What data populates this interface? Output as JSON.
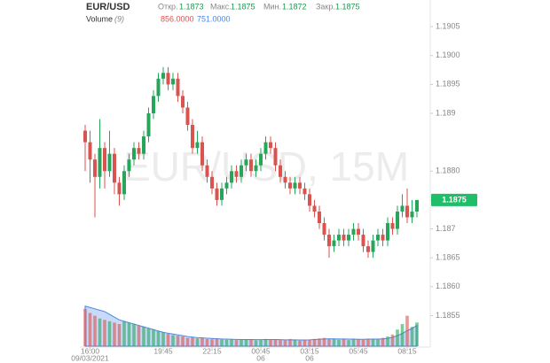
{
  "chart_data": {
    "type": "candlestick",
    "title": "EUR/USD",
    "watermark": "EUR/USD, 15M",
    "header_labels": {
      "open": "Откр.",
      "high": "Макс.",
      "low": "Мин.",
      "close": "Закр."
    },
    "categories": [
      null,
      "16:00",
      null,
      null,
      null,
      null,
      null,
      null,
      null,
      null,
      null,
      null,
      null,
      null,
      null,
      null,
      "19:45",
      null,
      null,
      null,
      null,
      null,
      null,
      null,
      null,
      null,
      "22:15",
      null,
      null,
      null,
      null,
      null,
      null,
      null,
      null,
      null,
      "00:45",
      null,
      null,
      null,
      null,
      null,
      null,
      null,
      null,
      null,
      "03:15",
      null,
      null,
      null,
      null,
      null,
      null,
      null,
      null,
      null,
      "05:45",
      null,
      null,
      null,
      null,
      null,
      null,
      null,
      null,
      null,
      "08:15",
      null,
      null
    ],
    "category_dates": [
      null,
      "09/03/2021",
      null,
      null,
      null,
      null,
      null,
      null,
      null,
      null,
      null,
      null,
      null,
      null,
      null,
      null,
      null,
      null,
      null,
      null,
      null,
      null,
      null,
      null,
      null,
      null,
      null,
      null,
      null,
      null,
      null,
      null,
      null,
      null,
      null,
      null,
      "06",
      null,
      null,
      null,
      null,
      null,
      null,
      null,
      null,
      null,
      "06",
      null,
      null,
      null,
      null,
      null,
      null,
      null,
      null,
      null,
      null,
      null,
      null,
      null,
      null,
      null,
      null,
      null,
      null,
      null,
      null,
      null,
      null
    ],
    "series": [
      {
        "name": "EUR/USD",
        "up_color": "#26a65b",
        "down_color": "#d9534f",
        "open": [
          1.1887,
          1.1885,
          1.1882,
          1.1879,
          1.1884,
          1.188,
          1.1883,
          1.1878,
          1.1876,
          1.188,
          1.1882,
          1.1884,
          1.1883,
          1.1886,
          1.189,
          1.1893,
          1.1896,
          1.1897,
          1.1895,
          1.1896,
          1.1893,
          1.1891,
          1.1888,
          1.1884,
          1.1885,
          1.1881,
          1.1879,
          1.1877,
          1.1875,
          1.1877,
          1.1878,
          1.188,
          1.1879,
          1.1881,
          1.1882,
          1.188,
          1.1881,
          1.1883,
          1.1885,
          1.1884,
          1.1881,
          1.1879,
          1.1878,
          1.1877,
          1.1878,
          1.1877,
          1.1876,
          1.1874,
          1.1873,
          1.1871,
          1.1869,
          1.1867,
          1.1868,
          1.1869,
          1.1868,
          1.1869,
          1.187,
          1.1869,
          1.1867,
          1.1866,
          1.1868,
          1.1869,
          1.1868,
          1.1871,
          1.187,
          1.1873,
          1.1874,
          1.1872,
          1.1873
        ],
        "high": [
          1.1888,
          1.1887,
          1.1883,
          1.1889,
          1.1885,
          1.1887,
          1.1884,
          1.1879,
          1.1881,
          1.1883,
          1.1885,
          1.1885,
          1.1887,
          1.1891,
          1.1894,
          1.1897,
          1.1898,
          1.1898,
          1.1897,
          1.1897,
          1.1894,
          1.1892,
          1.1889,
          1.1887,
          1.1886,
          1.1882,
          1.188,
          1.1878,
          1.1878,
          1.1879,
          1.1881,
          1.1881,
          1.1882,
          1.1883,
          1.1883,
          1.1882,
          1.1884,
          1.1886,
          1.1886,
          1.1885,
          1.1882,
          1.188,
          1.1879,
          1.1879,
          1.1879,
          1.1878,
          1.1877,
          1.1875,
          1.1874,
          1.1872,
          1.187,
          1.1869,
          1.187,
          1.187,
          1.187,
          1.1871,
          1.1871,
          1.187,
          1.1868,
          1.1869,
          1.187,
          1.187,
          1.1872,
          1.1872,
          1.1874,
          1.1876,
          1.1877,
          1.1875,
          1.1875
        ],
        "low": [
          1.188,
          1.1878,
          1.1872,
          1.1877,
          1.1877,
          1.1879,
          1.1876,
          1.1874,
          1.1875,
          1.1879,
          1.1881,
          1.1882,
          1.1882,
          1.1885,
          1.1889,
          1.1892,
          1.1895,
          1.1894,
          1.1894,
          1.1892,
          1.189,
          1.1887,
          1.1883,
          1.1883,
          1.188,
          1.1878,
          1.1876,
          1.1874,
          1.1874,
          1.1876,
          1.1877,
          1.1878,
          1.1878,
          1.188,
          1.1879,
          1.1879,
          1.188,
          1.1882,
          1.1883,
          1.188,
          1.1878,
          1.1877,
          1.1876,
          1.1876,
          1.1876,
          1.1875,
          1.1873,
          1.1872,
          1.187,
          1.1868,
          1.1865,
          1.1866,
          1.1867,
          1.1867,
          1.1867,
          1.1868,
          1.1868,
          1.1866,
          1.1865,
          1.1865,
          1.1867,
          1.1867,
          1.1867,
          1.1869,
          1.1869,
          1.1872,
          1.1871,
          1.1871,
          1.1872
        ],
        "close": [
          1.1885,
          1.1882,
          1.1879,
          1.1884,
          1.188,
          1.1883,
          1.1878,
          1.1876,
          1.188,
          1.1882,
          1.1884,
          1.1883,
          1.1886,
          1.189,
          1.1893,
          1.1896,
          1.1897,
          1.1895,
          1.1896,
          1.1893,
          1.1891,
          1.1888,
          1.1884,
          1.1885,
          1.1881,
          1.1879,
          1.1877,
          1.1875,
          1.1877,
          1.1878,
          1.188,
          1.1879,
          1.1881,
          1.1882,
          1.188,
          1.1881,
          1.1883,
          1.1885,
          1.1884,
          1.1881,
          1.1879,
          1.1878,
          1.1877,
          1.1878,
          1.1877,
          1.1876,
          1.1874,
          1.1873,
          1.1871,
          1.1869,
          1.1867,
          1.1868,
          1.1869,
          1.1868,
          1.1869,
          1.187,
          1.1869,
          1.1867,
          1.1866,
          1.1868,
          1.1869,
          1.1868,
          1.1871,
          1.187,
          1.1873,
          1.1874,
          1.1872,
          1.1873,
          1.1875
        ]
      }
    ],
    "volume": {
      "name": "Volume",
      "period": "(9)",
      "ylim": [
        0,
        1600
      ],
      "ma_color": "#4a86e8",
      "values": [
        1350,
        1200,
        1100,
        1000,
        950,
        900,
        850,
        800,
        900,
        850,
        800,
        750,
        700,
        650,
        600,
        550,
        500,
        450,
        400,
        380,
        350,
        300,
        320,
        280,
        300,
        260,
        250,
        280,
        240,
        230,
        260,
        220,
        240,
        230,
        250,
        210,
        220,
        260,
        240,
        230,
        220,
        210,
        260,
        230,
        200,
        220,
        240,
        260,
        280,
        300,
        250,
        270,
        230,
        260,
        220,
        250,
        240,
        230,
        270,
        260,
        240,
        300,
        350,
        420,
        600,
        800,
        1100,
        700,
        856
      ],
      "value_label": "856.0000",
      "ma_values": [
        1450,
        1400,
        1350,
        1300,
        1250,
        1150,
        1050,
        950,
        900,
        850,
        800,
        750,
        700,
        650,
        600,
        550,
        500,
        470,
        440,
        410,
        380,
        350,
        330,
        310,
        300,
        290,
        280,
        270,
        260,
        255,
        250,
        245,
        240,
        240,
        240,
        235,
        235,
        240,
        240,
        240,
        235,
        230,
        230,
        230,
        225,
        225,
        230,
        240,
        250,
        260,
        265,
        265,
        260,
        260,
        255,
        255,
        250,
        250,
        255,
        255,
        255,
        265,
        285,
        320,
        380,
        460,
        560,
        640,
        751
      ],
      "ma_label": "751.0000"
    },
    "ylim": [
      1.1852,
      1.1909
    ],
    "yticks": [
      1.1905,
      {
        "value": 1.19,
        "label": "1.1900"
      },
      1.1895,
      1.189,
      {
        "value": 1.188,
        "label": "1.1880"
      },
      1.1875,
      1.187,
      1.1865,
      {
        "value": 1.186,
        "label": "1.1860"
      },
      1.1855
    ]
  }
}
